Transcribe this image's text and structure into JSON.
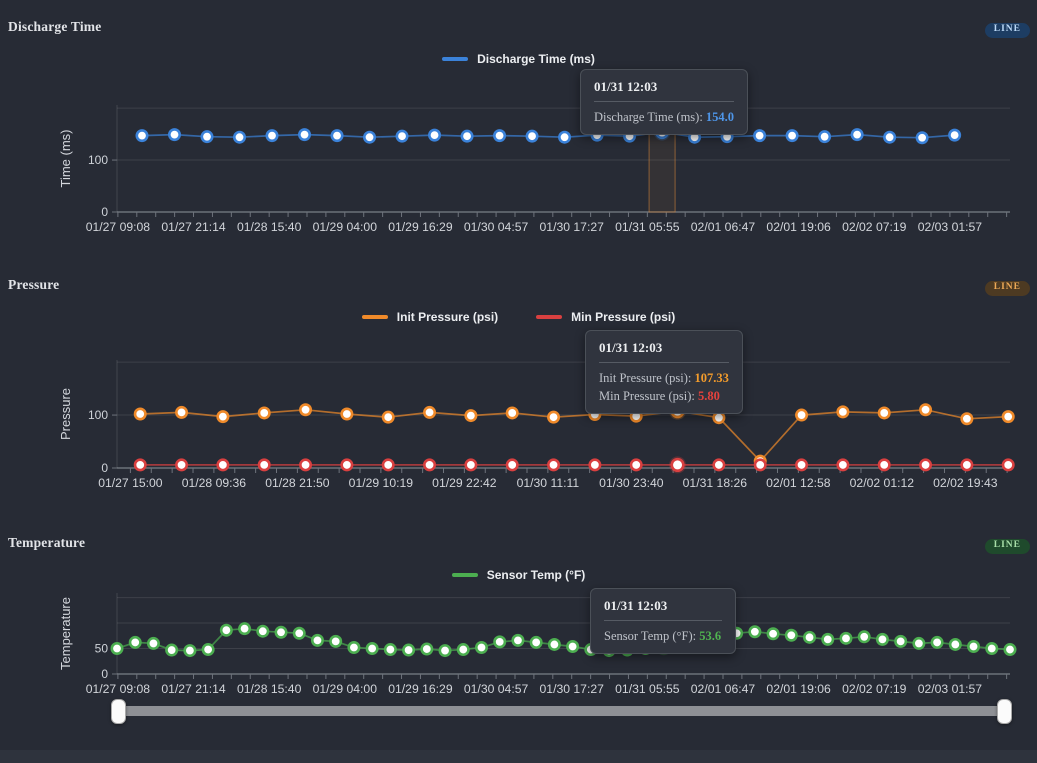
{
  "page": {
    "bg": "#272b35"
  },
  "chart_data": [
    {
      "type": "line",
      "title": "Discharge Time",
      "badge": {
        "label": "LINE",
        "bg": "#1d3d63",
        "text_color": "#bcd9f7"
      },
      "y_axis": {
        "title": "Time (ms)",
        "max": 206,
        "gridlines": [
          200,
          100,
          0
        ],
        "ticks": [
          {
            "label": "100",
            "value": 100
          },
          {
            "label": "0",
            "value": 0
          }
        ]
      },
      "x_tick_labels": [
        "01/27 09:08",
        "01/27 21:14",
        "01/28 15:40",
        "01/29 04:00",
        "01/29 16:29",
        "01/30 04:57",
        "01/30 17:27",
        "01/31 05:55",
        "02/01 06:47",
        "02/01 19:06",
        "02/02 07:19",
        "02/03 01:57"
      ],
      "series": [
        {
          "name": "Discharge Time (ms)",
          "color": "#3b82d9",
          "values": [
            147,
            149,
            145,
            144,
            147,
            149,
            147,
            144,
            146,
            148,
            146,
            147,
            146,
            144,
            148,
            146,
            154,
            144,
            145,
            147,
            147,
            145,
            149,
            144,
            143,
            148
          ]
        }
      ],
      "hover": {
        "index": 16,
        "band": true
      },
      "tooltip": {
        "title": "01/31 12:03",
        "rows": [
          {
            "label": "Discharge Time (ms)",
            "value": "154.0",
            "color": "#4e96e9"
          }
        ]
      }
    },
    {
      "type": "line",
      "title": "Pressure",
      "badge": {
        "label": "LINE",
        "bg": "#4d3a22",
        "text_color": "#eda957"
      },
      "y_axis": {
        "title": "Pressure",
        "max": 204,
        "gridlines": [
          200,
          100,
          0
        ],
        "ticks": [
          {
            "label": "100",
            "value": 100
          },
          {
            "label": "0",
            "value": 0
          }
        ]
      },
      "x_tick_labels": [
        "01/27 15:00",
        "01/28 09:36",
        "01/28 21:50",
        "01/29 10:19",
        "01/29 22:42",
        "01/30 11:11",
        "01/30 23:40",
        "01/31 18:26",
        "02/01 12:58",
        "02/02 01:12",
        "02/02 19:43"
      ],
      "series": [
        {
          "name": "Init Pressure (psi)",
          "color": "#ef8a2a",
          "values": [
            102,
            105,
            97,
            104,
            110,
            102,
            96,
            105,
            99,
            104,
            96,
            101,
            98,
            107.33,
            95,
            13,
            100,
            106,
            104,
            110,
            93,
            97
          ]
        },
        {
          "name": "Min Pressure (psi)",
          "color": "#d94040",
          "values": [
            5.9,
            5.8,
            5.8,
            5.9,
            5.8,
            5.8,
            5.8,
            5.9,
            5.8,
            5.8,
            5.9,
            5.8,
            5.8,
            5.8,
            5.8,
            5.9,
            5.8,
            5.8,
            5.9,
            5.8,
            5.8,
            5.8
          ]
        }
      ],
      "hover": {
        "index": 13,
        "band": false
      },
      "tooltip": {
        "title": "01/31 12:03",
        "rows": [
          {
            "label": "Init Pressure (psi)",
            "value": "107.33",
            "color": "#f39c2c"
          },
          {
            "label": "Min Pressure (psi)",
            "value": "5.80",
            "color": "#e4423d"
          }
        ]
      }
    },
    {
      "type": "line",
      "title": "Temperature",
      "badge": {
        "label": "LINE",
        "bg": "#1f4a2c",
        "text_color": "#a8dfa9"
      },
      "y_axis": {
        "title": "Temperature",
        "max": 159,
        "gridlines": [
          150,
          100,
          50,
          0
        ],
        "ticks": [
          {
            "label": "50",
            "value": 50
          },
          {
            "label": "0",
            "value": 0
          }
        ]
      },
      "x_tick_labels": [
        "01/27 09:08",
        "01/27 21:14",
        "01/28 15:40",
        "01/29 04:00",
        "01/29 16:29",
        "01/30 04:57",
        "01/30 17:27",
        "01/31 05:55",
        "02/01 06:47",
        "02/01 19:06",
        "02/02 07:19",
        "02/03 01:57"
      ],
      "series": [
        {
          "name": "Sensor Temp (°F)",
          "color": "#4cae50",
          "values": [
            50,
            62,
            60,
            47,
            46,
            48,
            86,
            89,
            84,
            82,
            80,
            66,
            64,
            52,
            50,
            48,
            47,
            49,
            46,
            48,
            52,
            63,
            66,
            62,
            58,
            54,
            48,
            46,
            47,
            50,
            53.6,
            58,
            62,
            75,
            80,
            83,
            79,
            76,
            72,
            68,
            70,
            73,
            68,
            64,
            60,
            62,
            58,
            54,
            50,
            48
          ]
        }
      ],
      "hover": {
        "index": 30,
        "band": false
      },
      "tooltip": {
        "title": "01/31 12:03",
        "rows": [
          {
            "label": "Sensor Temp (°F)",
            "value": "53.6",
            "color": "#50b450"
          }
        ]
      }
    }
  ]
}
